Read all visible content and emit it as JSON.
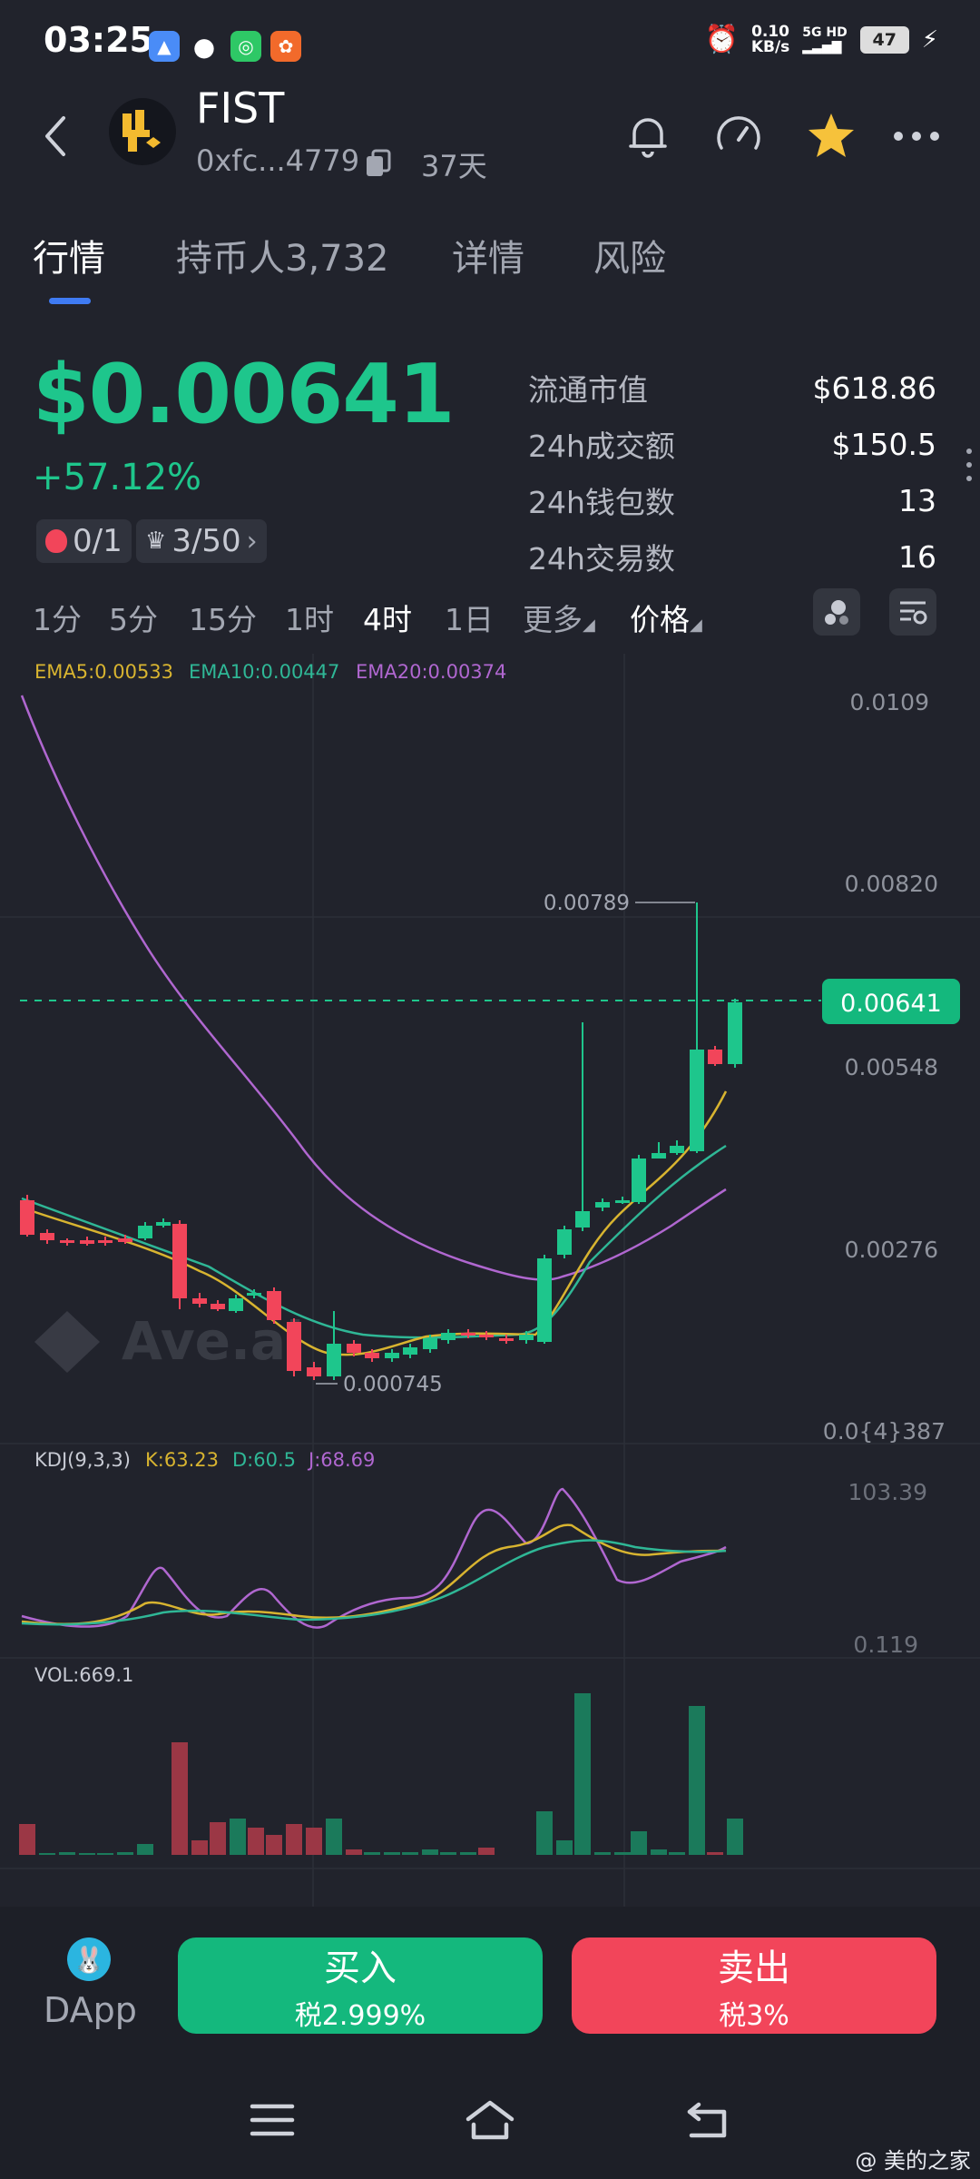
{
  "status_bar": {
    "time": "03:25",
    "net_speed_value": "0.10",
    "net_speed_unit": "KB/s",
    "network": "5G HD",
    "battery": "47"
  },
  "header": {
    "token_name": "FIST",
    "address": "0xfc...4779",
    "age": "37天"
  },
  "tabs": [
    {
      "label": "行情"
    },
    {
      "label": "持币人3,732"
    },
    {
      "label": "详情"
    },
    {
      "label": "风险"
    }
  ],
  "price": {
    "value": "$0.00641",
    "change": "+57.12%",
    "pill1": "0/1",
    "pill2": "3/50"
  },
  "stats": [
    {
      "label": "流通市值",
      "value": "$618.86"
    },
    {
      "label": "24h成交额",
      "value": "$150.5"
    },
    {
      "label": "24h钱包数",
      "value": "13"
    },
    {
      "label": "24h交易数",
      "value": "16"
    }
  ],
  "intervals": [
    "1分",
    "5分",
    "15分",
    "1时",
    "4时",
    "1日",
    "更多",
    "价格"
  ],
  "chart": {
    "ema_labels": [
      "EMA5:0.00533",
      "EMA10:0.00447",
      "EMA20:0.00374"
    ],
    "y_ticks": [
      "0.0109",
      "0.00820",
      "0.00548",
      "0.00276",
      "0.0{4}387"
    ],
    "current_price_tag": "0.00641",
    "high_label": "0.00789",
    "low_label": "0.000745",
    "watermark": "Ave.ai",
    "kdj_title": "KDJ(9,3,3)",
    "kdj_values": [
      "K:63.23",
      "D:60.5",
      "J:68.69"
    ],
    "kdj_ticks": [
      "103.39",
      "0.119"
    ],
    "vol_title": "VOL:669.1",
    "colors": {
      "up": "#1ec68c",
      "down": "#f2455a",
      "ema5": "#d8b430",
      "ema10": "#2fb796",
      "ema20": "#b067d0"
    }
  },
  "bottom": {
    "dapp": "DApp",
    "buy_label": "买入",
    "buy_tax": "税2.999%",
    "sell_label": "卖出",
    "sell_tax": "税3%"
  },
  "watermark_text": "@ 美的之家"
}
